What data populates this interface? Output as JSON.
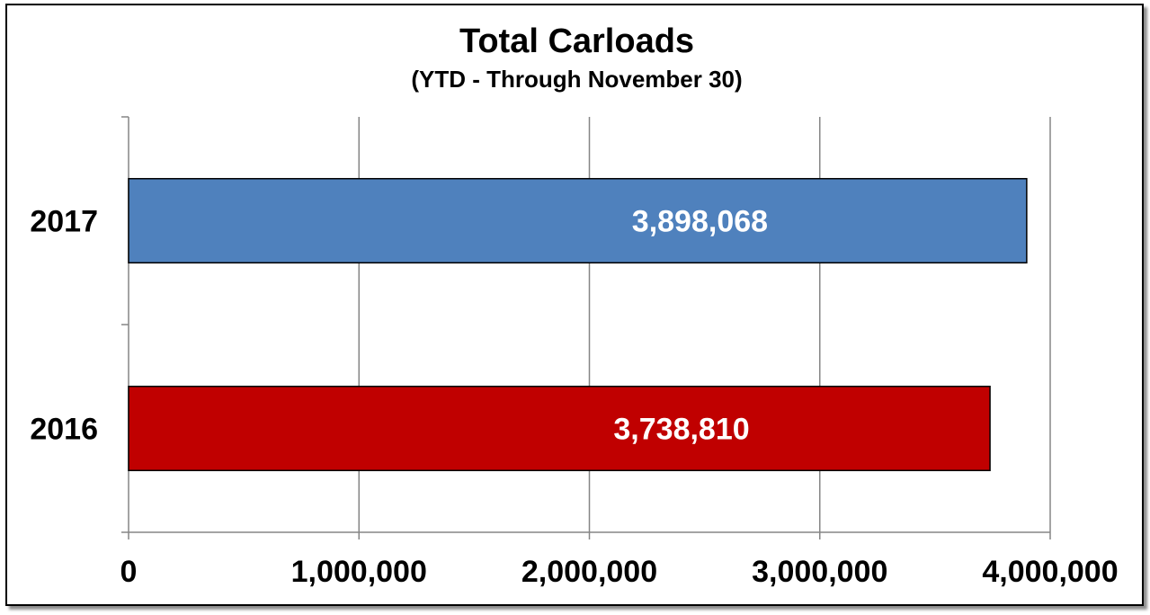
{
  "chart_data": {
    "type": "bar",
    "orientation": "horizontal",
    "title": "Total Carloads",
    "subtitle": "(YTD - Through November 30)",
    "categories": [
      "2017",
      "2016"
    ],
    "values": [
      3898068,
      3738810
    ],
    "value_labels": [
      "3,898,068",
      "3,738,810"
    ],
    "bar_colors": [
      "#4F81BD",
      "#C00000"
    ],
    "xlim": [
      0,
      4000000
    ],
    "x_ticks": [
      0,
      1000000,
      2000000,
      3000000,
      4000000
    ],
    "x_tick_labels": [
      "0",
      "1,000,000",
      "2,000,000",
      "3,000,000",
      "4,000,000"
    ],
    "grid": true,
    "legend": "none"
  }
}
